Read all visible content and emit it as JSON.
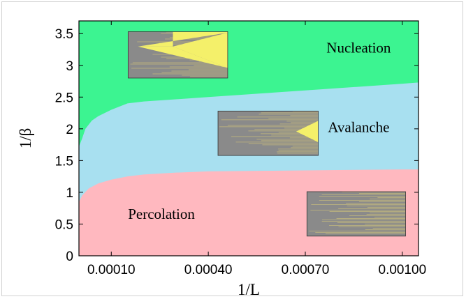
{
  "chart_data": {
    "type": "area",
    "xlabel": "1/L",
    "ylabel": "1/β",
    "xlim": [
      0,
      0.00105
    ],
    "ylim": [
      0,
      3.7
    ],
    "x_ticks": [
      0.0001,
      0.0004,
      0.0007,
      0.001
    ],
    "x_tick_labels": [
      "0.00010",
      "0.00040",
      "0.00070",
      "0.00100"
    ],
    "y_ticks": [
      0,
      0.5,
      1,
      1.5,
      2,
      2.5,
      3,
      3.5
    ],
    "y_tick_labels": [
      "0",
      "0.5",
      "1",
      "1.5",
      "2",
      "2.5",
      "3",
      "3.5"
    ],
    "grid": false,
    "regions": [
      {
        "name": "Percolation",
        "color": "#ffb8bf",
        "upper_boundary": {
          "x": [
            0,
            1e-05,
            3e-05,
            6e-05,
            0.0001,
            0.00015,
            0.0002,
            0.0003,
            0.0004,
            0.0006,
            0.0008,
            0.001,
            0.00105
          ],
          "y": [
            0.85,
            0.95,
            1.06,
            1.14,
            1.2,
            1.25,
            1.28,
            1.31,
            1.33,
            1.34,
            1.35,
            1.36,
            1.36
          ]
        }
      },
      {
        "name": "Avalanche",
        "color": "#a8e0f0",
        "upper_boundary": {
          "x": [
            0,
            1e-05,
            2e-05,
            4e-05,
            6e-05,
            0.0001,
            0.00015,
            0.0002,
            0.0004,
            0.0006,
            0.0008,
            0.001,
            0.00105
          ],
          "y": [
            1.72,
            1.85,
            2.0,
            2.13,
            2.2,
            2.3,
            2.4,
            2.43,
            2.5,
            2.57,
            2.64,
            2.71,
            2.73
          ]
        }
      },
      {
        "name": "Nucleation",
        "color": "#3cf491"
      }
    ],
    "region_label_positions": [
      {
        "text": "Nucleation",
        "x": 0.000865,
        "y": 3.2
      },
      {
        "text": "Avalanche",
        "x": 0.000865,
        "y": 1.95
      },
      {
        "text": "Percolation",
        "x": 0.000255,
        "y": 0.58
      }
    ],
    "insets": [
      {
        "description": "Nucleation snapshot",
        "x_range": [
          0.000152,
          0.00046
        ],
        "y_range": [
          2.8,
          3.53
        ],
        "pattern": "yellow-wedge"
      },
      {
        "description": "Avalanche snapshot",
        "x_range": [
          0.00043,
          0.00074
        ],
        "y_range": [
          1.58,
          2.28
        ],
        "pattern": "small-wedge"
      },
      {
        "description": "Percolation snapshot",
        "x_range": [
          0.000705,
          0.00101
        ],
        "y_range": [
          0.31,
          1.01
        ],
        "pattern": "stripes"
      }
    ]
  }
}
